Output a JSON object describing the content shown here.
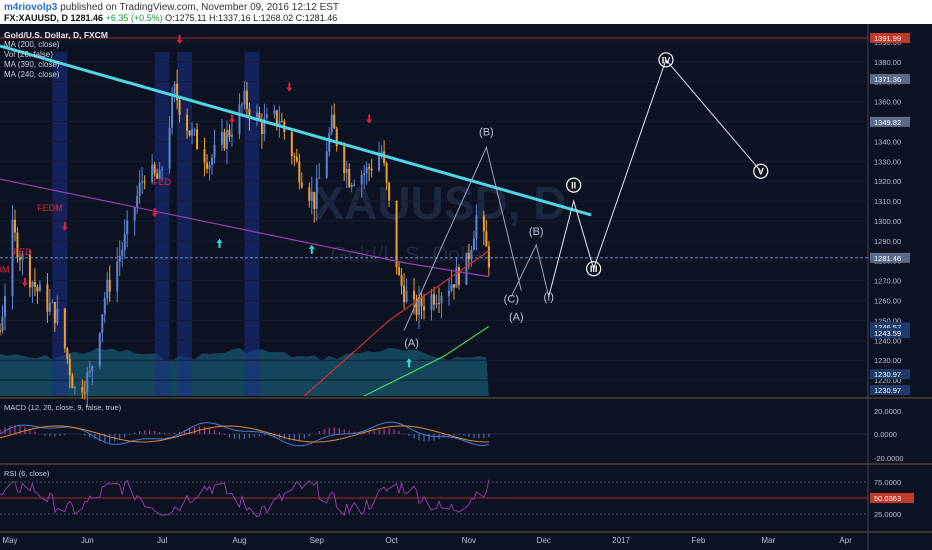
{
  "header": {
    "author": "m4riovolp3",
    "published": "published on TradingView.com, November 09, 2016 12:12 EST",
    "symbol": "FX:XAUUSD, D",
    "last": "1281.46",
    "change": "+6.35 (+0.5%)",
    "ohlc_o": "O:1275.11",
    "ohlc_h": "H:1337.16",
    "ohlc_l": "L:1268.02",
    "ohlc_c": "C:1281.46"
  },
  "legend": {
    "title": "Gold/U.S. Dollar, D, FXCM",
    "items": [
      "MA (200, close)",
      "Vol (20, false)",
      "MA (390, close)",
      "MA (240, close)"
    ]
  },
  "watermark": {
    "symbol": "XAUUSD, D",
    "name": "Gold/U.S. Dollar"
  },
  "colors": {
    "background": "#0c1222",
    "bull": "#5b86d6",
    "bear": "#f0a030",
    "trendline": "#4fd6e6",
    "ma_red": "#d93030",
    "ma_green": "#3fd65a",
    "ma_purple": "#9b3fb0",
    "macd_line": "#3f7fd6",
    "signal_line": "#e08a30",
    "rsi_line": "#9b3fb0",
    "arrow_down": "#e0203a",
    "arrow_up": "#2ee0e0"
  },
  "price_axis": {
    "ticks": [
      "1390.00",
      "1380.00",
      "1370.00",
      "1360.00",
      "1350.00",
      "1340.00",
      "1330.00",
      "1320.00",
      "1310.00",
      "1300.00",
      "1290.00",
      "1280.00",
      "1270.00",
      "1260.00",
      "1250.00",
      "1240.00",
      "1230.00",
      "1220.00"
    ],
    "labels": [
      {
        "text": "1391.99",
        "bg": "#c0392b",
        "value": 1391.99
      },
      {
        "text": "1371.36",
        "bg": "#5b6b8a",
        "value": 1371.36
      },
      {
        "text": "1349.82",
        "bg": "#5b6b8a",
        "value": 1349.82
      },
      {
        "text": "1281.46",
        "bg": "#5b6b8a",
        "value": 1281.46
      },
      {
        "text": "1246.57",
        "bg": "#1d3a6a",
        "value": 1246.57
      },
      {
        "text": "1243.59",
        "bg": "#1d3a6a",
        "value": 1243.59
      },
      {
        "text": "1230.97",
        "bg": "#1d3a6a",
        "value": 1223.0
      },
      {
        "text": "1230.97",
        "bg": "#1d3a6a",
        "value": 1215.0
      }
    ]
  },
  "time_axis": [
    "May",
    "Jun",
    "Jul",
    "Aug",
    "Sep",
    "Oct",
    "Nov",
    "Dec",
    "2017",
    "Feb",
    "Mar",
    "Apr"
  ],
  "annotations": {
    "fed": [
      "FED",
      "FEDM",
      "FED",
      "DM"
    ],
    "waves": [
      "(B)",
      "(A)",
      "(C)",
      "(A)",
      "(B)",
      "(I)"
    ],
    "roman": [
      "IV",
      "II",
      "III",
      "V"
    ]
  },
  "macd": {
    "label": "MACD (12, 26, close, 9, false, true)",
    "ticks": [
      "20.0000",
      "0.0000",
      "-20.0000"
    ]
  },
  "rsi": {
    "label": "RSI (6, close)",
    "ticks": [
      "75.0000",
      "25.0000"
    ],
    "current": "50.0363"
  },
  "chart_data": {
    "type": "candlestick",
    "title": "Gold/U.S. Dollar, D, FXCM",
    "x_range": [
      "2016-04-27",
      "2017-04-10"
    ],
    "ylim": [
      1212,
      1396
    ],
    "last_price": 1281.46,
    "trendline": {
      "from": [
        "2016-04-27",
        1388
      ],
      "to": [
        "2016-12-20",
        1303
      ]
    },
    "wave_projection": [
      {
        "label": "(B)",
        "date": "2016-11-08",
        "value": 1337
      },
      {
        "label": "(C)",
        "date": "2016-11-22",
        "value": 1265
      },
      {
        "label": "(B)",
        "date": "2016-11-28",
        "value": 1288
      },
      {
        "label": "(I)",
        "date": "2016-12-03",
        "value": 1262
      },
      {
        "label": "II",
        "date": "2016-12-13",
        "value": 1310
      },
      {
        "label": "III",
        "date": "2016-12-21",
        "value": 1276
      },
      {
        "label": "IV",
        "date": "2017-01-19",
        "value": 1381
      },
      {
        "label": "V",
        "date": "2017-02-26",
        "value": 1325
      }
    ],
    "panels": [
      "price",
      "volume",
      "MACD (12, 26, close, 9)",
      "RSI (6)"
    ]
  }
}
